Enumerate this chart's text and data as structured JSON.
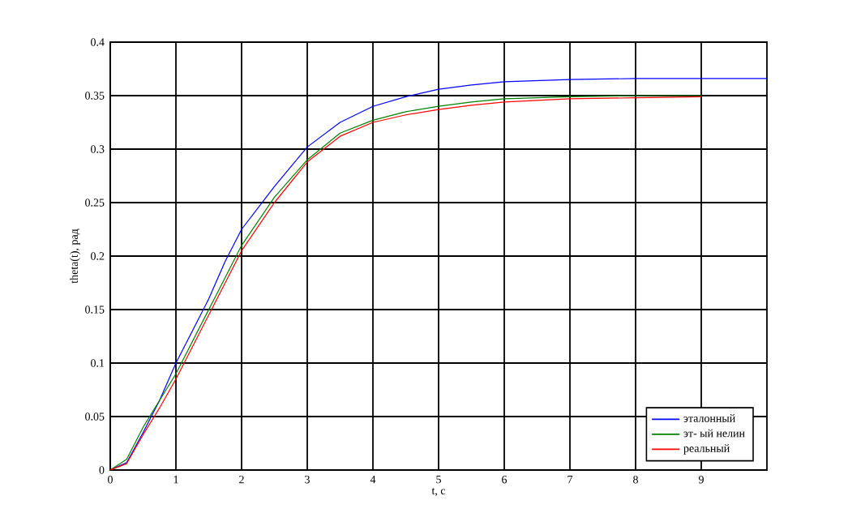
{
  "chart_data": {
    "type": "line",
    "xlabel": "t, c",
    "ylabel": "theta(t), рад",
    "x": [
      0,
      0.25,
      0.5,
      0.75,
      1,
      1.25,
      1.5,
      1.75,
      2,
      2.5,
      3,
      3.5,
      4,
      4.5,
      5,
      5.5,
      6,
      7,
      8,
      9,
      10
    ],
    "series": [
      {
        "name": "эталонный",
        "color": "#0000ff",
        "values": [
          0,
          0.007,
          0.035,
          0.065,
          0.1,
          0.13,
          0.16,
          0.195,
          0.225,
          0.265,
          0.302,
          0.325,
          0.34,
          0.349,
          0.356,
          0.36,
          0.363,
          0.365,
          0.366,
          0.366,
          0.366
        ]
      },
      {
        "name": "эт- ый нелин",
        "color": "#008000",
        "values": [
          0,
          0.01,
          0.04,
          0.065,
          0.09,
          0.12,
          0.15,
          0.18,
          0.21,
          0.255,
          0.29,
          0.315,
          0.327,
          0.335,
          0.34,
          0.344,
          0.347,
          0.349,
          0.35,
          0.35,
          null
        ]
      },
      {
        "name": "реальный",
        "color": "#ff0000",
        "values": [
          0,
          0.006,
          0.033,
          0.058,
          0.085,
          0.115,
          0.145,
          0.175,
          0.205,
          0.25,
          0.288,
          0.312,
          0.325,
          0.332,
          0.337,
          0.341,
          0.344,
          0.347,
          0.348,
          0.349,
          null
        ]
      }
    ],
    "xlim": [
      0,
      10
    ],
    "ylim": [
      0,
      0.4
    ],
    "xticks": [
      0,
      1,
      2,
      3,
      4,
      5,
      6,
      7,
      8,
      9
    ],
    "yticks": [
      0,
      0.05,
      0.1,
      0.15,
      0.2,
      0.25,
      0.3,
      0.35,
      0.4
    ],
    "grid": true,
    "legend": "bottom right"
  }
}
